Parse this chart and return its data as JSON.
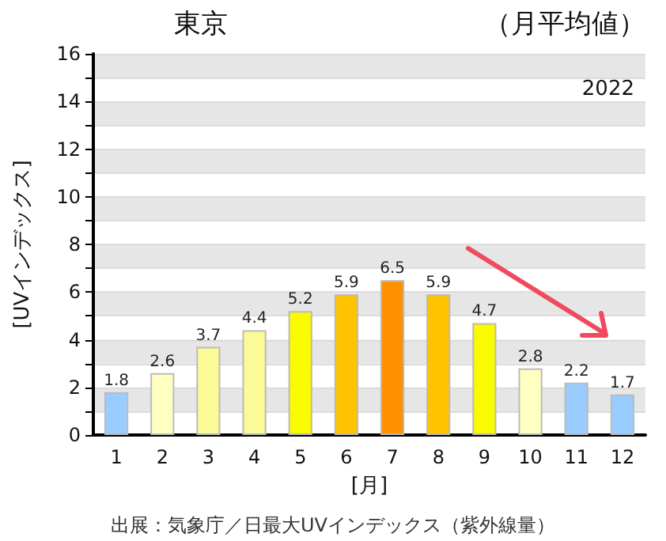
{
  "chart_data": {
    "type": "bar",
    "title": "東京",
    "subtitle": "（月平均値）",
    "xlabel": "[月]",
    "ylabel": "[UVインデックス]",
    "categories": [
      "1",
      "2",
      "3",
      "4",
      "5",
      "6",
      "7",
      "8",
      "9",
      "10",
      "11",
      "12"
    ],
    "values": [
      1.8,
      2.6,
      3.7,
      4.4,
      5.2,
      5.9,
      6.5,
      5.9,
      4.7,
      2.8,
      2.2,
      1.7
    ],
    "colors": [
      "#99ccff",
      "#ffffc0",
      "#fafa96",
      "#fafa96",
      "#fafa00",
      "#ffc300",
      "#ff9100",
      "#ffc300",
      "#fafa00",
      "#ffffc0",
      "#99ccff",
      "#99ccff"
    ],
    "ylim": [
      0,
      16
    ],
    "yticks": [
      0,
      {
        "value": 1,
        "label": null
      },
      2,
      {
        "value": 3,
        "label": null
      },
      4,
      {
        "value": 5,
        "label": null
      },
      6,
      {
        "value": 7,
        "label": null
      },
      8,
      {
        "value": 9,
        "label": null
      },
      10,
      {
        "value": 11,
        "label": null
      },
      12,
      {
        "value": 13,
        "label": null
      },
      14,
      {
        "value": 15,
        "label": null
      },
      16
    ],
    "grid": "y",
    "data_labels": true,
    "annotations": [
      "2022",
      "出展：気象庁／日最大UVインデックス（紫外線量）"
    ]
  }
}
